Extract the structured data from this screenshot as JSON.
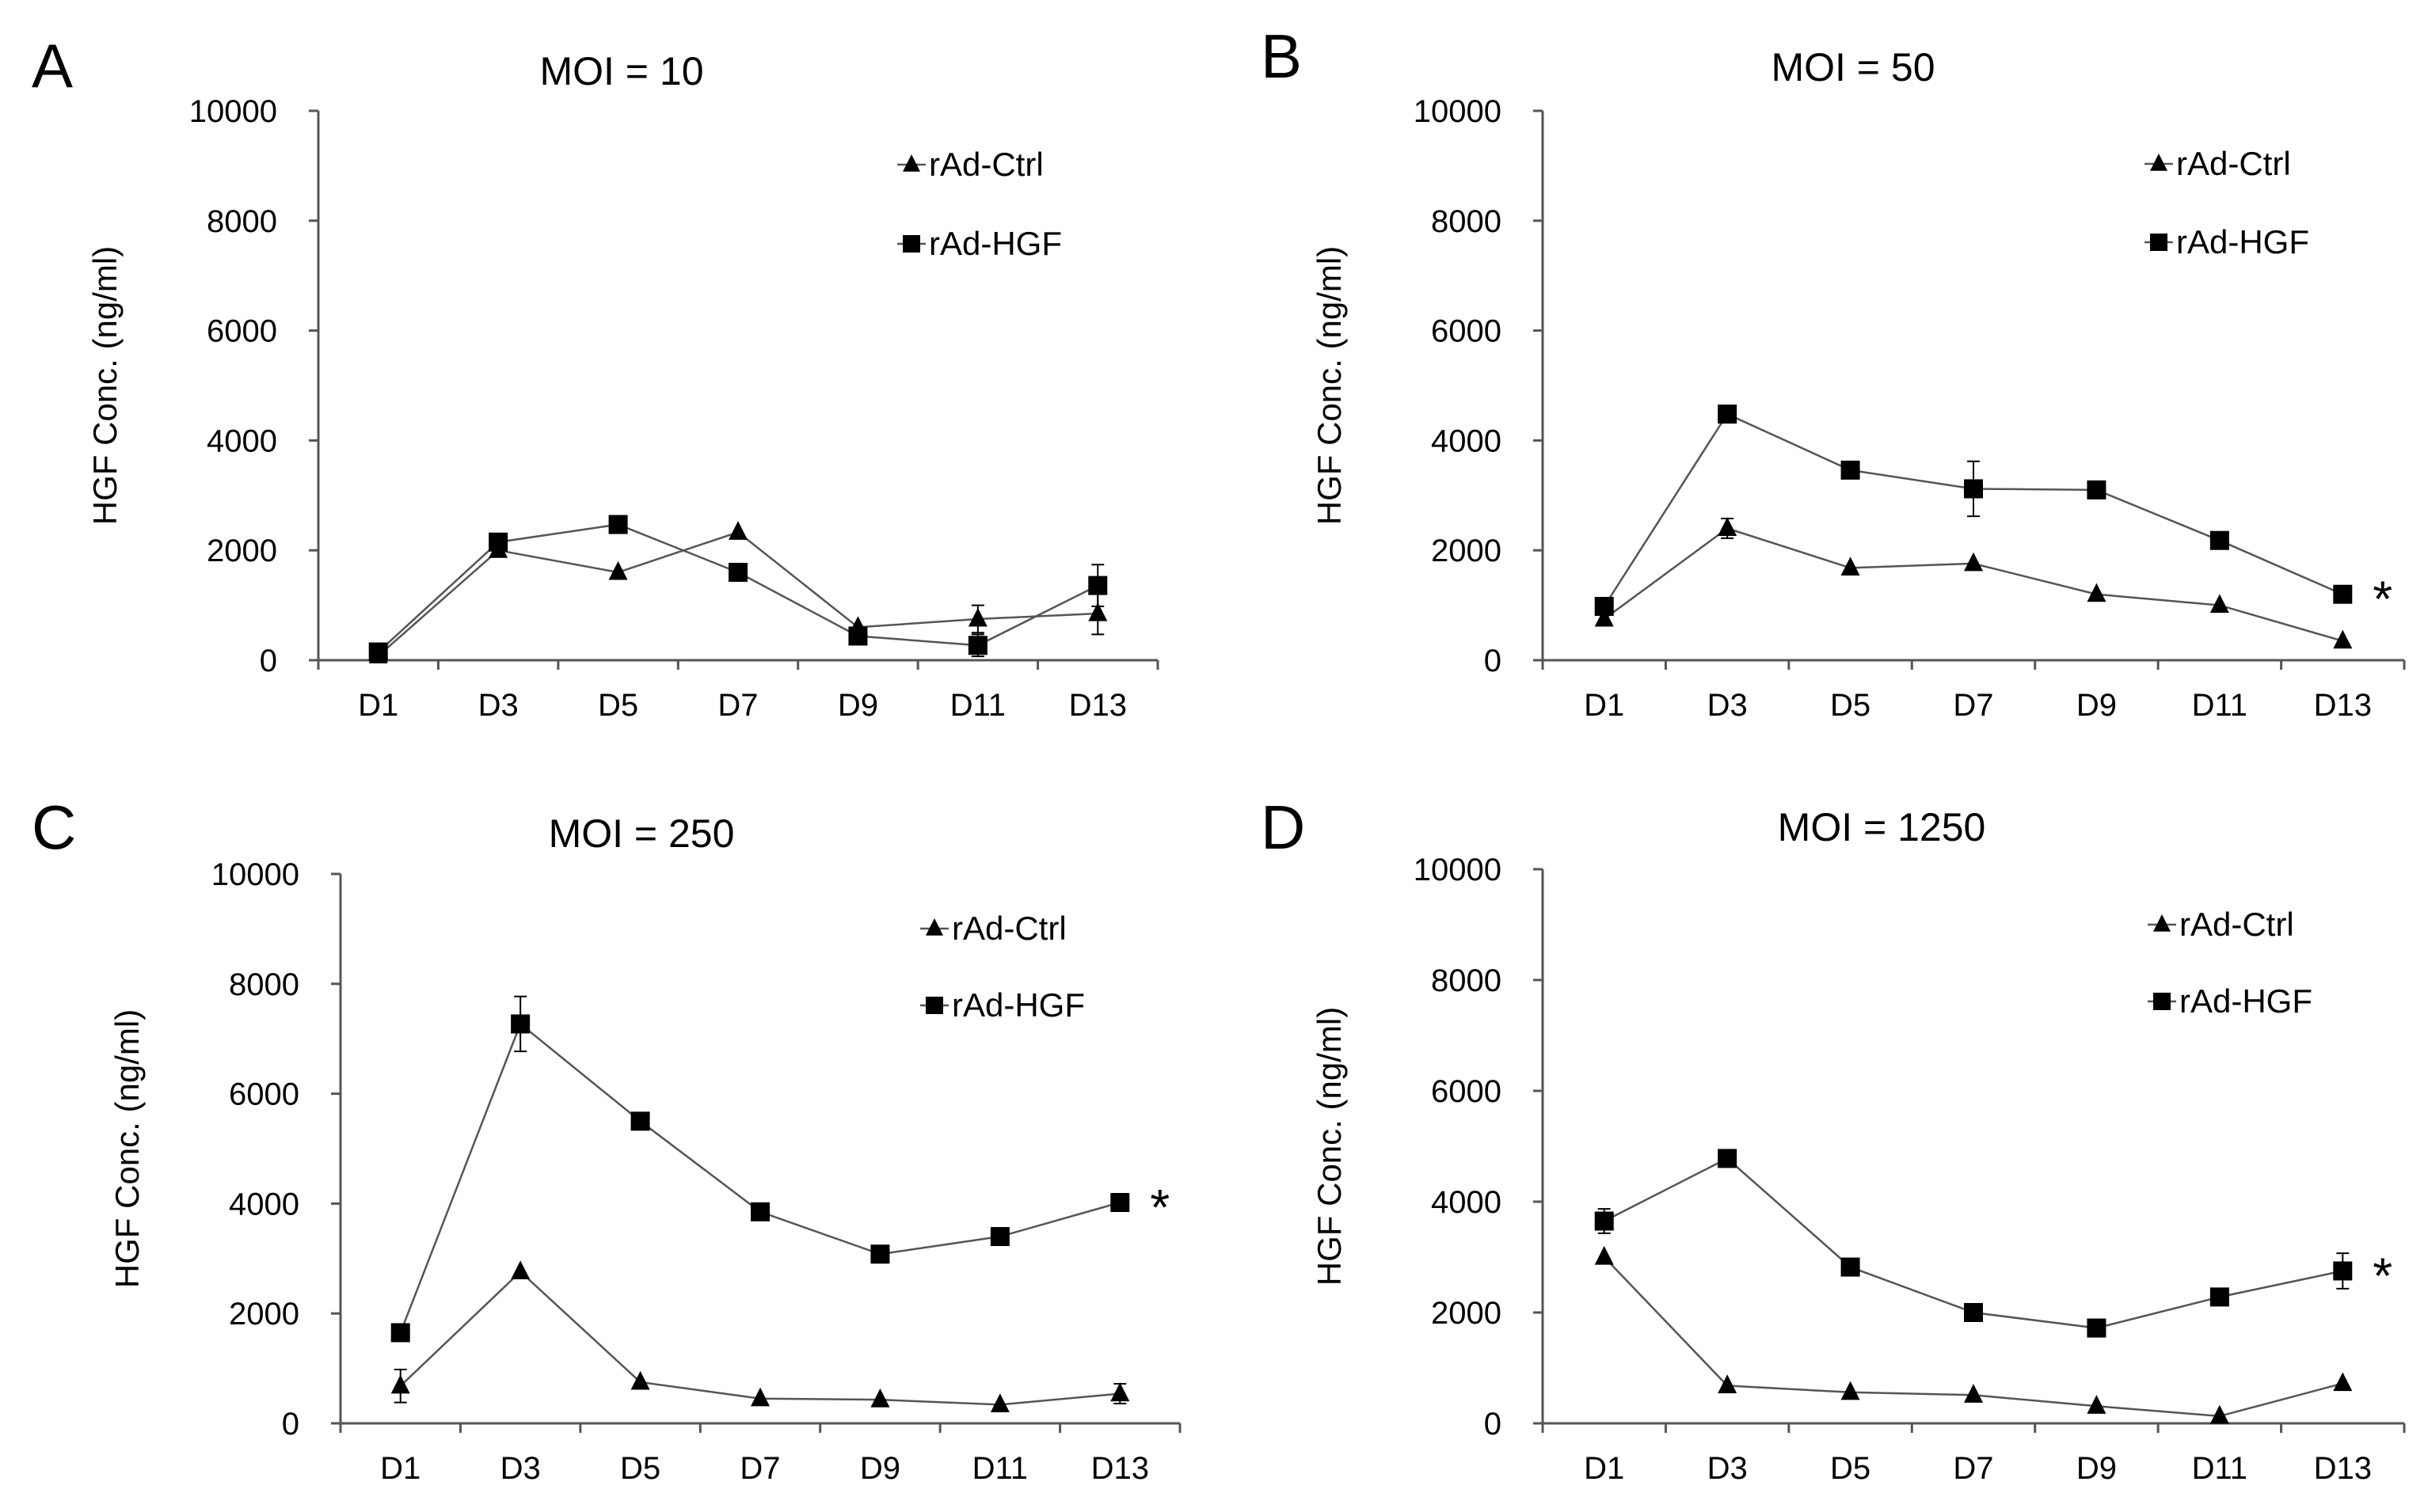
{
  "figure": {
    "legend_labels": [
      "rAd-Ctrl",
      "rAd-HGF"
    ]
  },
  "chart_data": [
    {
      "type": "line",
      "panel": "A",
      "title": "MOI = 10",
      "xlabel": "",
      "ylabel": "HGF Conc. (ng/ml)",
      "categories": [
        "D1",
        "D3",
        "D5",
        "D7",
        "D9",
        "D11",
        "D13"
      ],
      "ylim": [
        0,
        10000
      ],
      "yticks": [
        "0",
        "2000",
        "4000",
        "6000",
        "8000",
        "10000"
      ],
      "grid": false,
      "legend": "top-right",
      "significance": "",
      "series": [
        {
          "name": "rAd-Ctrl",
          "marker": "triangle",
          "values": [
            80,
            2000,
            1600,
            2330,
            600,
            750,
            850
          ],
          "errors": [
            0,
            0,
            0,
            0,
            0,
            250,
            380
          ]
        },
        {
          "name": "rAd-HGF",
          "marker": "square",
          "values": [
            150,
            2150,
            2470,
            1600,
            440,
            270,
            1360
          ],
          "errors": [
            0,
            0,
            0,
            0,
            0,
            200,
            380
          ]
        }
      ]
    },
    {
      "type": "line",
      "panel": "B",
      "title": "MOI = 50",
      "xlabel": "",
      "ylabel": "HGF Conc. (ng/ml)",
      "categories": [
        "D1",
        "D3",
        "D5",
        "D7",
        "D9",
        "D11",
        "D13"
      ],
      "ylim": [
        0,
        10000
      ],
      "yticks": [
        "0",
        "2000",
        "4000",
        "6000",
        "8000",
        "10000"
      ],
      "grid": false,
      "legend": "top-right",
      "significance": "*",
      "series": [
        {
          "name": "rAd-Ctrl",
          "marker": "triangle",
          "values": [
            750,
            2400,
            1680,
            1760,
            1200,
            1000,
            350
          ],
          "errors": [
            0,
            180,
            0,
            0,
            0,
            0,
            0
          ]
        },
        {
          "name": "rAd-HGF",
          "marker": "square",
          "values": [
            980,
            4480,
            3460,
            3120,
            3100,
            2180,
            1200
          ],
          "errors": [
            0,
            0,
            0,
            500,
            0,
            0,
            0
          ]
        }
      ]
    },
    {
      "type": "line",
      "panel": "C",
      "title": "MOI = 250",
      "xlabel": "",
      "ylabel": "HGF Conc. (ng/ml)",
      "categories": [
        "D1",
        "D3",
        "D5",
        "D7",
        "D9",
        "D11",
        "D13"
      ],
      "ylim": [
        0,
        10000
      ],
      "yticks": [
        "0",
        "2000",
        "4000",
        "6000",
        "8000",
        "10000"
      ],
      "grid": false,
      "legend": "top-right",
      "significance": "*",
      "series": [
        {
          "name": "rAd-Ctrl",
          "marker": "triangle",
          "values": [
            680,
            2760,
            750,
            450,
            430,
            340,
            540
          ],
          "errors": [
            300,
            0,
            0,
            0,
            0,
            0,
            180
          ]
        },
        {
          "name": "rAd-HGF",
          "marker": "square",
          "values": [
            1650,
            7270,
            5500,
            3850,
            3080,
            3400,
            4020
          ],
          "errors": [
            0,
            500,
            0,
            0,
            0,
            150,
            120
          ]
        }
      ]
    },
    {
      "type": "line",
      "panel": "D",
      "title": "MOI = 1250",
      "xlabel": "",
      "ylabel": "HGF Conc. (ng/ml)",
      "categories": [
        "D1",
        "D3",
        "D5",
        "D7",
        "D9",
        "D11",
        "D13"
      ],
      "ylim": [
        0,
        10000
      ],
      "yticks": [
        "0",
        "2000",
        "4000",
        "6000",
        "8000",
        "10000"
      ],
      "grid": false,
      "legend": "top-right",
      "significance": "*",
      "series": [
        {
          "name": "rAd-Ctrl",
          "marker": "triangle",
          "values": [
            3000,
            680,
            560,
            510,
            310,
            130,
            720
          ],
          "errors": [
            0,
            0,
            0,
            0,
            0,
            0,
            0
          ]
        },
        {
          "name": "rAd-HGF",
          "marker": "square",
          "values": [
            3650,
            4780,
            2820,
            2000,
            1720,
            2280,
            2750
          ],
          "errors": [
            220,
            0,
            0,
            150,
            0,
            0,
            320
          ]
        }
      ]
    }
  ]
}
